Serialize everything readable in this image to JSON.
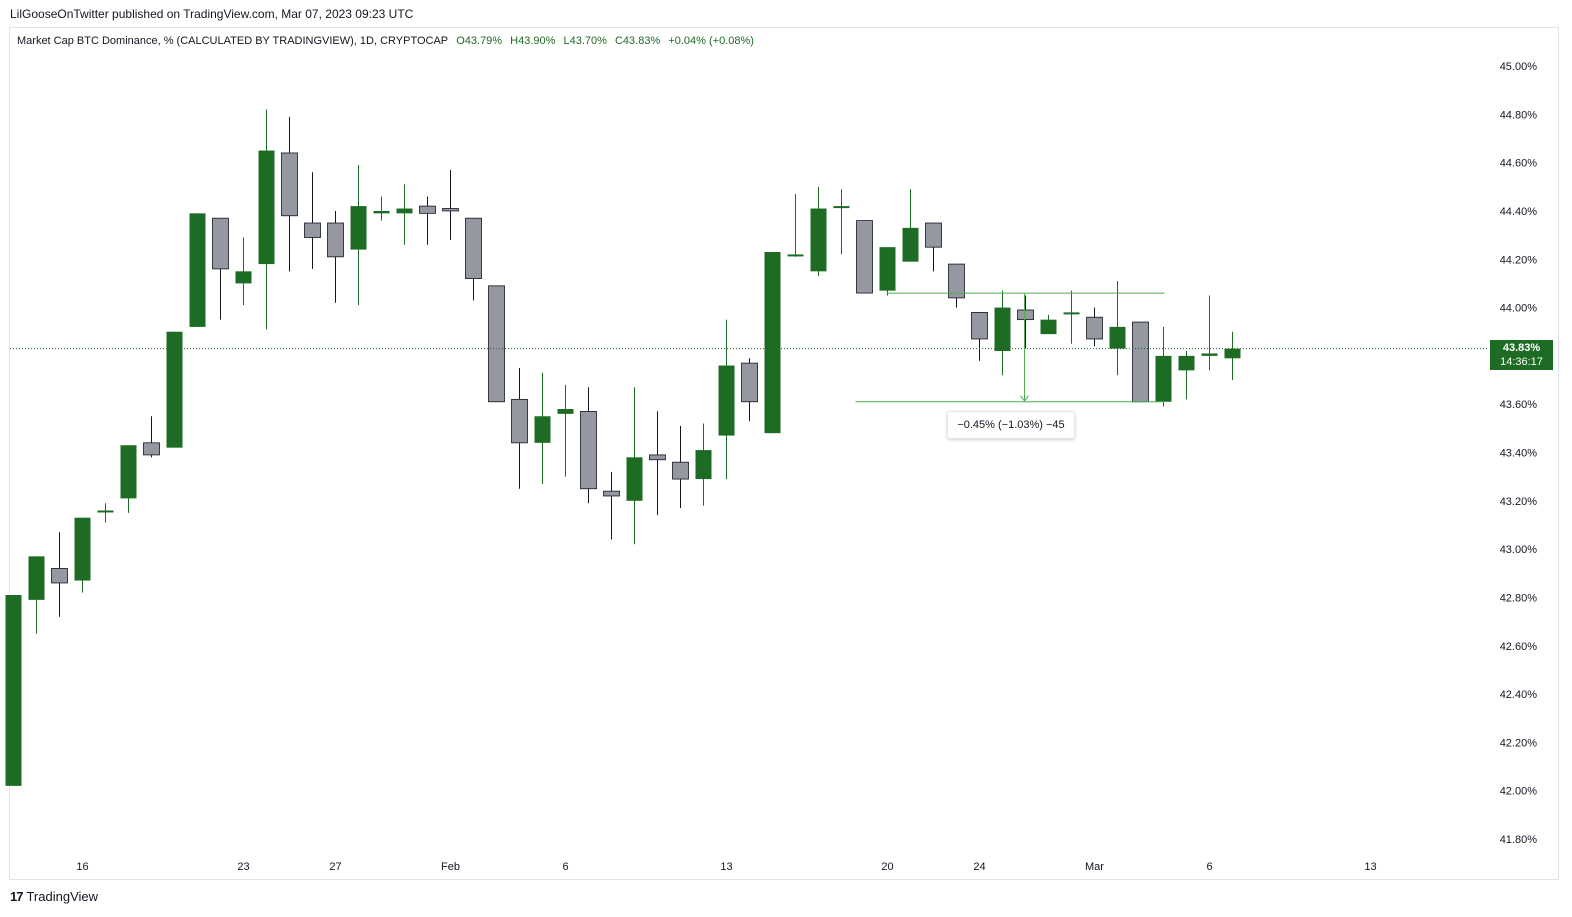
{
  "header": {
    "published": "LilGooseOnTwitter published on TradingView.com, Mar 07, 2023 09:23 UTC"
  },
  "legend": {
    "title": "Market Cap BTC Dominance, % (CALCULATED BY TRADINGVIEW), 1D, CRYPTOCAP",
    "open": "O43.79%",
    "high": "H43.90%",
    "low": "L43.70%",
    "close": "C43.83%",
    "change": "+0.04% (+0.08%)"
  },
  "price_tag": {
    "price": "43.83%",
    "countdown": "14:36:17"
  },
  "measure": {
    "label": "−0.45% (−1.03%) −45"
  },
  "footer": {
    "brand": "TradingView",
    "logo": "tradingview-logo-icon"
  },
  "colors": {
    "up": "#1e6b24",
    "down": "#9598a1",
    "grid_line": "#1e6b24",
    "measure": "#4caf50"
  },
  "chart_data": {
    "type": "candlestick",
    "ylim": [
      41.7,
      45.1
    ],
    "yticks": [
      "45.00%",
      "44.80%",
      "44.60%",
      "44.40%",
      "44.20%",
      "44.00%",
      "43.80%",
      "43.60%",
      "43.40%",
      "43.20%",
      "43.00%",
      "42.80%",
      "42.60%",
      "42.40%",
      "42.20%",
      "42.00%",
      "41.80%"
    ],
    "ytick_values": [
      45.0,
      44.8,
      44.6,
      44.4,
      44.2,
      44.0,
      43.8,
      43.6,
      43.4,
      43.2,
      43.0,
      42.8,
      42.6,
      42.4,
      42.2,
      42.0,
      41.8
    ],
    "xticks": [
      {
        "label": "16",
        "i": 3
      },
      {
        "label": "23",
        "i": 10
      },
      {
        "label": "27",
        "i": 14
      },
      {
        "label": "Feb",
        "i": 19
      },
      {
        "label": "6",
        "i": 24
      },
      {
        "label": "13",
        "i": 31
      },
      {
        "label": "20",
        "i": 38
      },
      {
        "label": "24",
        "i": 42
      },
      {
        "label": "Mar",
        "i": 47
      },
      {
        "label": "6",
        "i": 52
      },
      {
        "label": "13",
        "i": 59
      }
    ],
    "candles": [
      {
        "date": "Jan 13",
        "o": 42.02,
        "h": 42.81,
        "l": 42.02,
        "c": 42.81
      },
      {
        "date": "Jan 14",
        "o": 42.79,
        "h": 42.97,
        "l": 42.65,
        "c": 42.97
      },
      {
        "date": "Jan 15",
        "o": 42.92,
        "h": 43.07,
        "l": 42.72,
        "c": 42.86
      },
      {
        "date": "Jan 16",
        "o": 42.87,
        "h": 43.13,
        "l": 42.82,
        "c": 43.13
      },
      {
        "date": "Jan 17",
        "o": 43.16,
        "h": 43.19,
        "l": 43.11,
        "c": 43.16
      },
      {
        "date": "Jan 18",
        "o": 43.21,
        "h": 43.43,
        "l": 43.15,
        "c": 43.43
      },
      {
        "date": "Jan 19",
        "o": 43.44,
        "h": 43.55,
        "l": 43.38,
        "c": 43.39
      },
      {
        "date": "Jan 20",
        "o": 43.42,
        "h": 43.9,
        "l": 43.42,
        "c": 43.9
      },
      {
        "date": "Jan 21",
        "o": 43.92,
        "h": 44.39,
        "l": 43.92,
        "c": 44.39
      },
      {
        "date": "Jan 22",
        "o": 44.37,
        "h": 44.37,
        "l": 43.95,
        "c": 44.16
      },
      {
        "date": "Jan 23",
        "o": 44.1,
        "h": 44.29,
        "l": 44.01,
        "c": 44.15
      },
      {
        "date": "Jan 24",
        "o": 44.18,
        "h": 44.82,
        "l": 43.91,
        "c": 44.65
      },
      {
        "date": "Jan 25",
        "o": 44.64,
        "h": 44.79,
        "l": 44.15,
        "c": 44.38
      },
      {
        "date": "Jan 26",
        "o": 44.35,
        "h": 44.56,
        "l": 44.16,
        "c": 44.29
      },
      {
        "date": "Jan 27",
        "o": 44.35,
        "h": 44.4,
        "l": 44.02,
        "c": 44.21
      },
      {
        "date": "Jan 28",
        "o": 44.24,
        "h": 44.59,
        "l": 44.01,
        "c": 44.42
      },
      {
        "date": "Jan 29",
        "o": 44.39,
        "h": 44.46,
        "l": 44.36,
        "c": 44.4
      },
      {
        "date": "Jan 30",
        "o": 44.39,
        "h": 44.51,
        "l": 44.26,
        "c": 44.41
      },
      {
        "date": "Jan 31",
        "o": 44.42,
        "h": 44.46,
        "l": 44.26,
        "c": 44.39
      },
      {
        "date": "Feb 1",
        "o": 44.41,
        "h": 44.57,
        "l": 44.28,
        "c": 44.4
      },
      {
        "date": "Feb 2",
        "o": 44.37,
        "h": 44.37,
        "l": 44.03,
        "c": 44.12
      },
      {
        "date": "Feb 3",
        "o": 44.09,
        "h": 44.09,
        "l": 43.61,
        "c": 43.61
      },
      {
        "date": "Feb 4",
        "o": 43.62,
        "h": 43.75,
        "l": 43.25,
        "c": 43.44
      },
      {
        "date": "Feb 5",
        "o": 43.44,
        "h": 43.73,
        "l": 43.27,
        "c": 43.55
      },
      {
        "date": "Feb 6",
        "o": 43.56,
        "h": 43.68,
        "l": 43.3,
        "c": 43.58
      },
      {
        "date": "Feb 7",
        "o": 43.57,
        "h": 43.67,
        "l": 43.19,
        "c": 43.25
      },
      {
        "date": "Feb 8",
        "o": 43.24,
        "h": 43.32,
        "l": 43.04,
        "c": 43.22
      },
      {
        "date": "Feb 9",
        "o": 43.2,
        "h": 43.67,
        "l": 43.02,
        "c": 43.38
      },
      {
        "date": "Feb 10",
        "o": 43.39,
        "h": 43.57,
        "l": 43.14,
        "c": 43.37
      },
      {
        "date": "Feb 11",
        "o": 43.36,
        "h": 43.51,
        "l": 43.17,
        "c": 43.29
      },
      {
        "date": "Feb 12",
        "o": 43.29,
        "h": 43.52,
        "l": 43.18,
        "c": 43.41
      },
      {
        "date": "Feb 13",
        "o": 43.47,
        "h": 43.95,
        "l": 43.29,
        "c": 43.76
      },
      {
        "date": "Feb 14",
        "o": 43.77,
        "h": 43.79,
        "l": 43.53,
        "c": 43.61
      },
      {
        "date": "Feb 15",
        "o": 43.48,
        "h": 44.23,
        "l": 43.48,
        "c": 44.23
      },
      {
        "date": "Feb 16",
        "o": 44.22,
        "h": 44.47,
        "l": 44.21,
        "c": 44.22
      },
      {
        "date": "Feb 17",
        "o": 44.15,
        "h": 44.5,
        "l": 44.13,
        "c": 44.41
      },
      {
        "date": "Feb 18",
        "o": 44.42,
        "h": 44.49,
        "l": 44.22,
        "c": 44.42
      },
      {
        "date": "Feb 19",
        "o": 44.36,
        "h": 44.36,
        "l": 44.06,
        "c": 44.06
      },
      {
        "date": "Feb 20",
        "o": 44.07,
        "h": 44.25,
        "l": 44.05,
        "c": 44.25
      },
      {
        "date": "Feb 21",
        "o": 44.19,
        "h": 44.49,
        "l": 44.19,
        "c": 44.33
      },
      {
        "date": "Feb 22",
        "o": 44.35,
        "h": 44.35,
        "l": 44.15,
        "c": 44.25
      },
      {
        "date": "Feb 23",
        "o": 44.18,
        "h": 44.18,
        "l": 44.0,
        "c": 44.04
      },
      {
        "date": "Feb 24",
        "o": 43.98,
        "h": 43.98,
        "l": 43.78,
        "c": 43.87
      },
      {
        "date": "Feb 25",
        "o": 43.82,
        "h": 44.07,
        "l": 43.72,
        "c": 44.0
      },
      {
        "date": "Feb 26",
        "o": 43.99,
        "h": 44.05,
        "l": 43.83,
        "c": 43.95
      },
      {
        "date": "Feb 27",
        "o": 43.89,
        "h": 43.97,
        "l": 43.89,
        "c": 43.95
      },
      {
        "date": "Feb 28",
        "o": 43.98,
        "h": 44.07,
        "l": 43.85,
        "c": 43.98
      },
      {
        "date": "Mar 1",
        "o": 43.96,
        "h": 44.0,
        "l": 43.84,
        "c": 43.87
      },
      {
        "date": "Mar 2",
        "o": 43.83,
        "h": 44.11,
        "l": 43.72,
        "c": 43.92
      },
      {
        "date": "Mar 3",
        "o": 43.94,
        "h": 43.94,
        "l": 43.61,
        "c": 43.61
      },
      {
        "date": "Mar 4",
        "o": 43.61,
        "h": 43.92,
        "l": 43.59,
        "c": 43.8
      },
      {
        "date": "Mar 5",
        "o": 43.74,
        "h": 43.82,
        "l": 43.62,
        "c": 43.8
      },
      {
        "date": "Mar 6",
        "o": 43.8,
        "h": 44.05,
        "l": 43.74,
        "c": 43.81
      },
      {
        "date": "Mar 7",
        "o": 43.79,
        "h": 43.9,
        "l": 43.7,
        "c": 43.83
      }
    ],
    "price_line": 43.83,
    "measure_tool": {
      "from_index": 36,
      "to_index": 49,
      "top": 44.06,
      "bottom": 43.61,
      "arrow_index": 43
    }
  }
}
